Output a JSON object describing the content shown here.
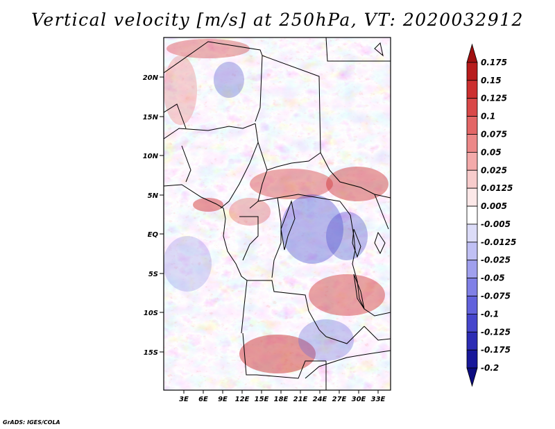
{
  "title": "Vertical velocity [m/s] at 250hPa, VT: 2020032912",
  "footer": "GrADS: IGES/COLA",
  "map": {
    "variable": "Vertical velocity",
    "units": "m/s",
    "level": "250hPa",
    "valid_time": "2020032912",
    "lat_labels": [
      "20N",
      "15N",
      "10N",
      "5N",
      "EQ",
      "5S",
      "10S",
      "15S"
    ],
    "lon_labels": [
      "3E",
      "6E",
      "9E",
      "12E",
      "15E",
      "18E",
      "21E",
      "24E",
      "27E",
      "30E",
      "33E"
    ]
  },
  "colorbar": {
    "labels": [
      "0.175",
      "0.15",
      "0.125",
      "0.1",
      "0.075",
      "0.05",
      "0.025",
      "0.0125",
      "0.005",
      "-0.005",
      "-0.0125",
      "-0.025",
      "-0.05",
      "-0.075",
      "-0.1",
      "-0.125",
      "-0.175",
      "-0.2"
    ],
    "colors": [
      "#a01010",
      "#b81c1c",
      "#cc2f2f",
      "#d94848",
      "#e36666",
      "#ec8888",
      "#f3aaaa",
      "#f8cccc",
      "#fce8e8",
      "#ffffff",
      "#dcdcf8",
      "#c0c0f4",
      "#a0a0ee",
      "#8080e6",
      "#6262dc",
      "#4646cc",
      "#2c2cb4",
      "#18189a",
      "#0c0c80"
    ]
  },
  "colors": {
    "border": "#000000",
    "positive": "#cc2f2f",
    "negative": "#3b3bd0"
  }
}
